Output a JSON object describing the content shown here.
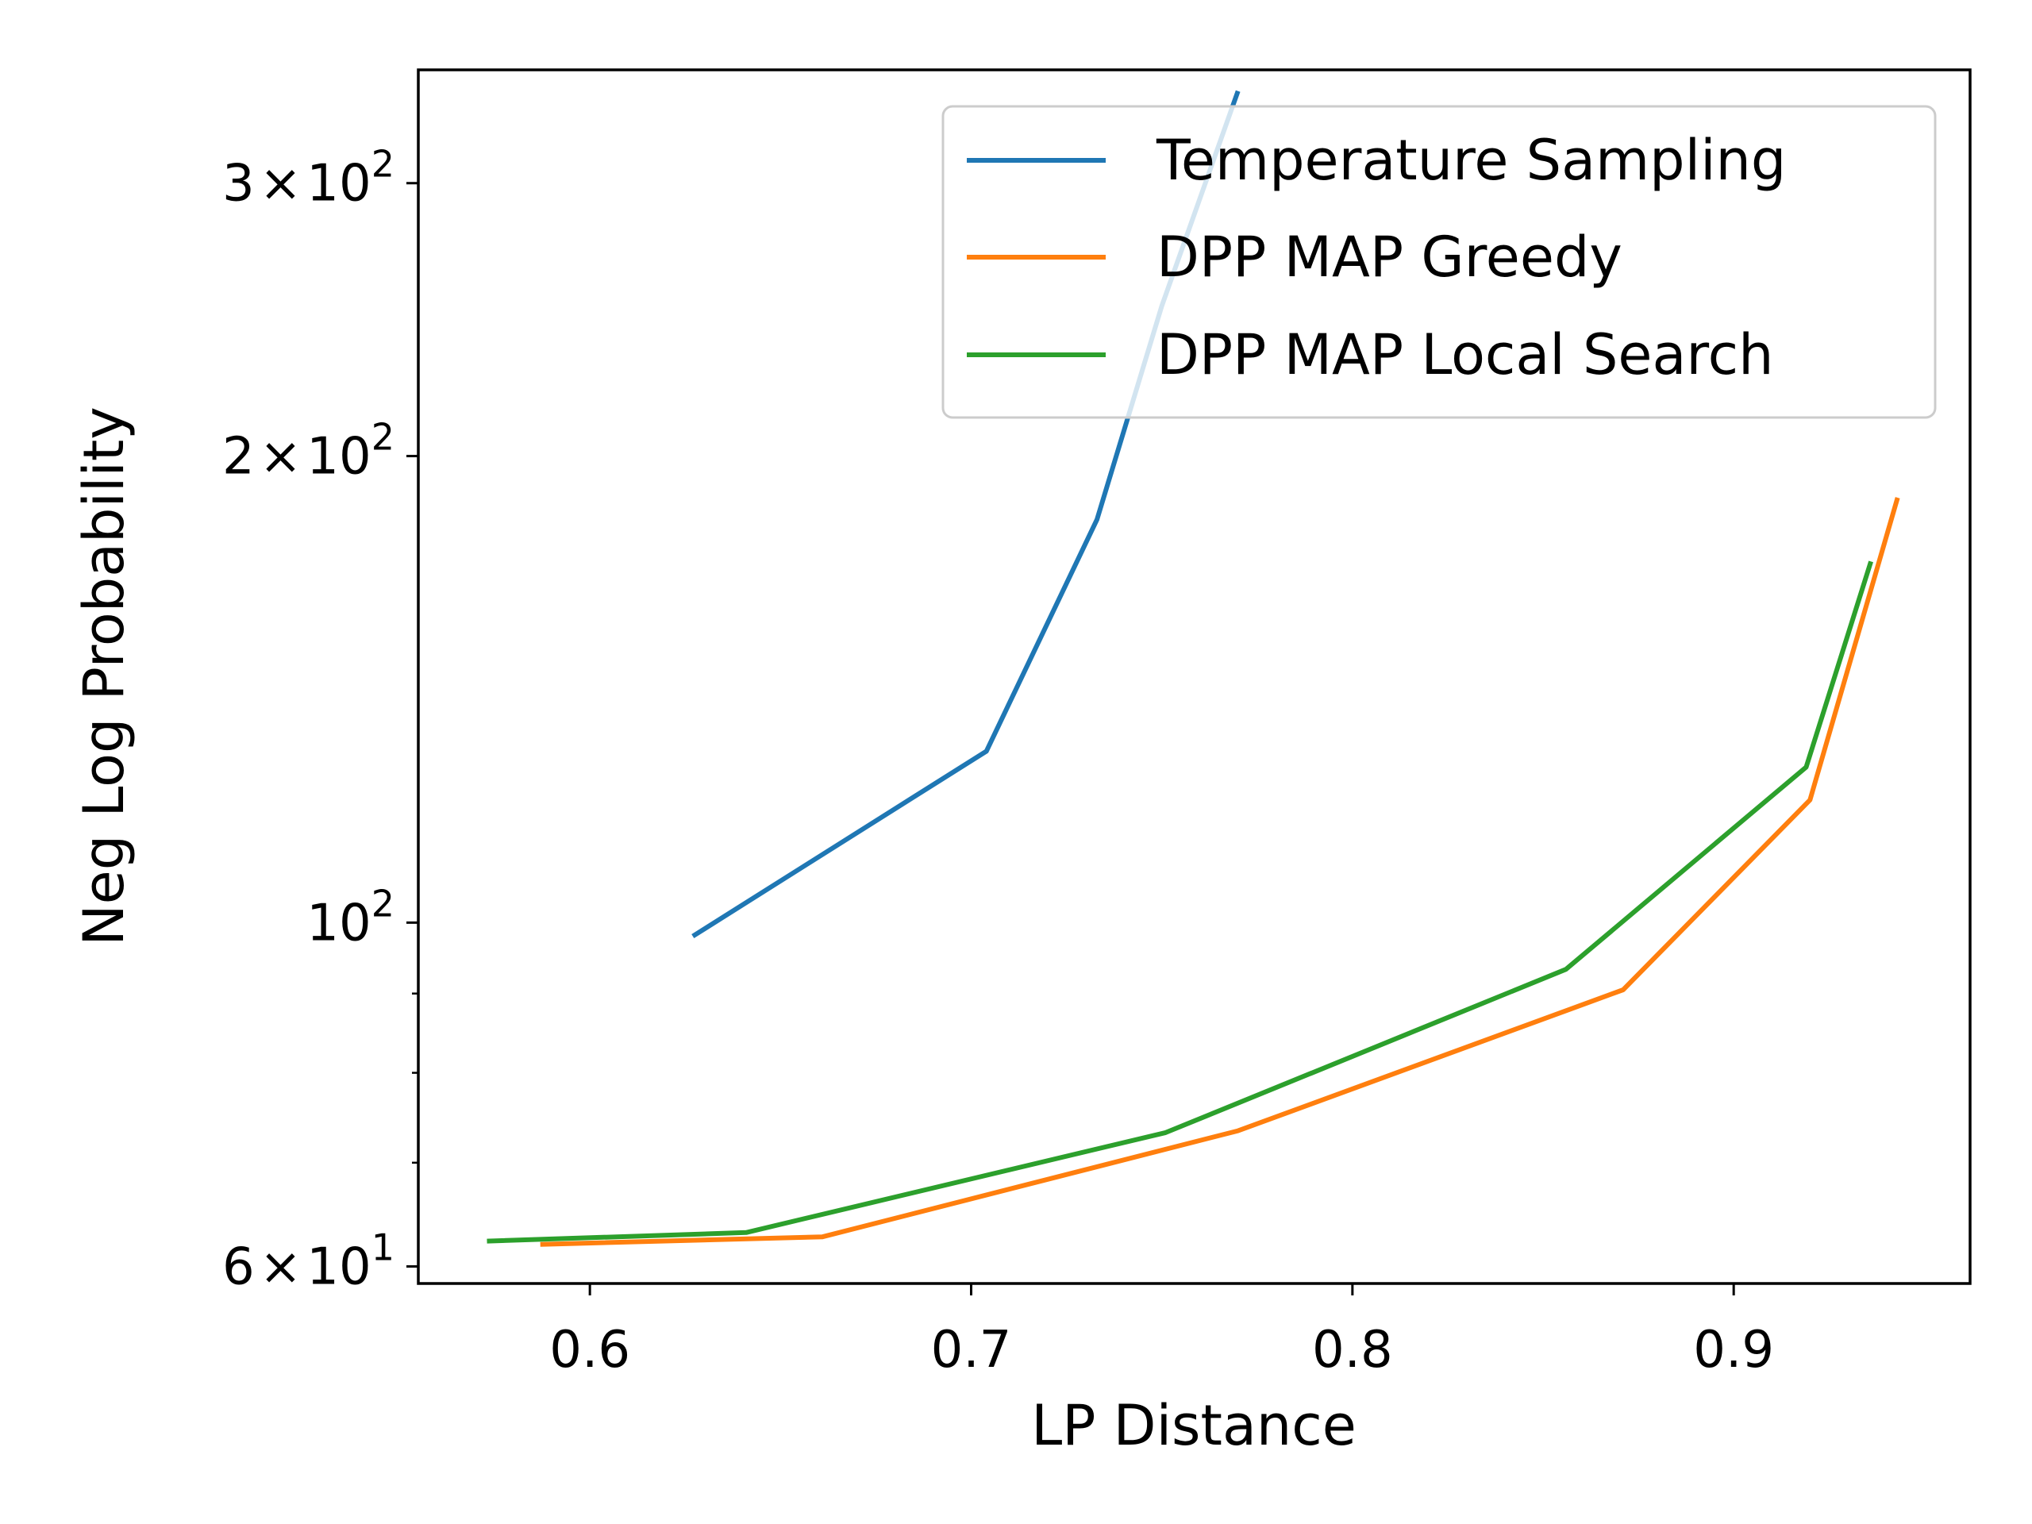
{
  "chart_data": {
    "type": "line",
    "title": "",
    "xlabel": "LP Distance",
    "ylabel": "Neg Log Probability",
    "xscale": "linear",
    "yscale": "log",
    "xlim": [
      0.555,
      0.962
    ],
    "ylim": [
      58.5,
      355
    ],
    "xticks": [
      {
        "value": 0.6,
        "label": "0.6"
      },
      {
        "value": 0.7,
        "label": "0.7"
      },
      {
        "value": 0.8,
        "label": "0.8"
      },
      {
        "value": 0.9,
        "label": "0.9"
      }
    ],
    "yticks": [
      {
        "value": 60,
        "base": "6",
        "exp": "1"
      },
      {
        "value": 100,
        "base": "",
        "exp": "2"
      },
      {
        "value": 200,
        "base": "2",
        "exp": "2"
      },
      {
        "value": 300,
        "base": "3",
        "exp": "2"
      }
    ],
    "yminor": [
      70,
      80,
      90
    ],
    "legend": {
      "position": "upper right"
    },
    "grid": false,
    "series": [
      {
        "name": "Temperature Sampling",
        "color": "#1f77b4",
        "x": [
          0.627,
          0.704,
          0.733,
          0.75,
          0.77
        ],
        "y": [
          98,
          129,
          182,
          250,
          344
        ]
      },
      {
        "name": "DPP MAP Greedy",
        "color": "#ff7f0e",
        "x": [
          0.587,
          0.661,
          0.77,
          0.871,
          0.92,
          0.943
        ],
        "y": [
          62,
          62.7,
          73.4,
          90.5,
          120,
          188
        ]
      },
      {
        "name": "DPP MAP Local Search",
        "color": "#2ca02c",
        "x": [
          0.573,
          0.641,
          0.751,
          0.856,
          0.919,
          0.936
        ],
        "y": [
          62.3,
          63.1,
          73.2,
          93.3,
          126,
          171
        ]
      }
    ]
  }
}
